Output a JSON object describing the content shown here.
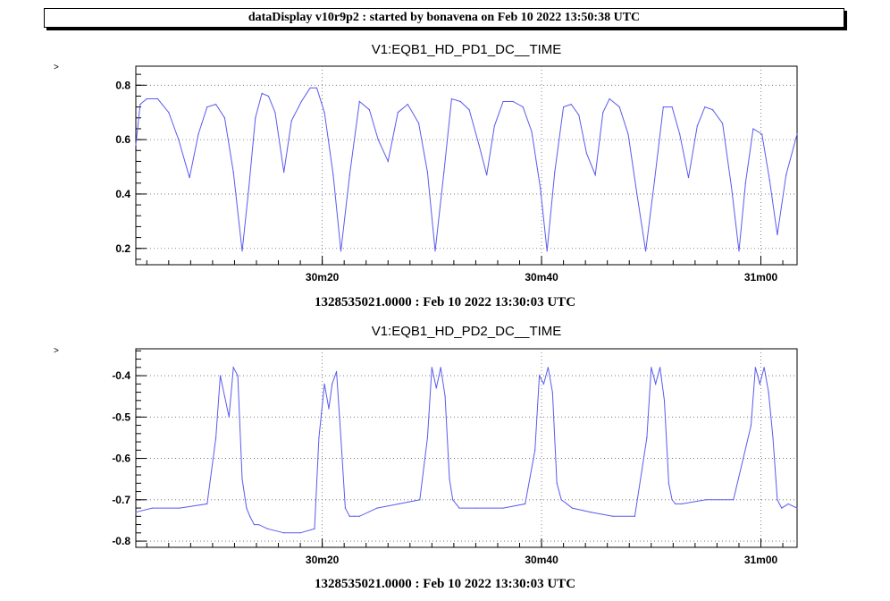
{
  "header": {
    "title": "dataDisplay v10r9p2 : started by bonavena on Feb 10 2022 13:50:38 UTC"
  },
  "chart_data": [
    {
      "type": "line",
      "title": "V1:EQB1_HD_PD1_DC__TIME",
      "y_marker": ">",
      "time_label": "1328535021.0000 : Feb 10 2022 13:30:03 UTC",
      "xlim": [
        1203.0,
        1263.3
      ],
      "ylim": [
        0.14,
        0.87
      ],
      "xticks": [
        {
          "value": 1220,
          "label": "30m20"
        },
        {
          "value": 1240,
          "label": "30m40"
        },
        {
          "value": 1260,
          "label": "31m00"
        }
      ],
      "yticks": [
        {
          "value": 0.2,
          "label": "0.2"
        },
        {
          "value": 0.4,
          "label": "0.4"
        },
        {
          "value": 0.6,
          "label": "0.6"
        },
        {
          "value": 0.8,
          "label": "0.8"
        }
      ],
      "grid": true,
      "color": "#5a5aef",
      "series": [
        {
          "x": [
            1203.0,
            1203.4,
            1204.0,
            1205.0,
            1206.0,
            1206.9,
            1207.9,
            1208.7,
            1209.5,
            1210.3,
            1211.1,
            1211.9,
            1212.7,
            1213.3,
            1213.9,
            1214.5,
            1215.1,
            1215.7,
            1216.5,
            1217.2,
            1218.1,
            1218.9,
            1219.5,
            1220.2,
            1221.0,
            1221.7,
            1222.5,
            1223.4,
            1224.3,
            1225.1,
            1226.0,
            1226.9,
            1227.8,
            1228.8,
            1229.6,
            1230.3,
            1231.1,
            1231.8,
            1232.6,
            1233.4,
            1234.3,
            1235.0,
            1235.7,
            1236.5,
            1237.4,
            1238.3,
            1239.1,
            1239.9,
            1240.5,
            1241.2,
            1242.0,
            1242.7,
            1243.4,
            1244.1,
            1244.9,
            1245.6,
            1246.2,
            1247.1,
            1247.9,
            1248.7,
            1249.5,
            1250.3,
            1251.1,
            1251.9,
            1252.6,
            1253.4,
            1254.2,
            1254.9,
            1255.6,
            1256.5,
            1257.3,
            1258.0,
            1258.6,
            1259.3,
            1260.1,
            1260.8,
            1261.5,
            1262.3,
            1263.3
          ],
          "y": [
            0.58,
            0.73,
            0.75,
            0.75,
            0.7,
            0.6,
            0.46,
            0.62,
            0.72,
            0.73,
            0.68,
            0.48,
            0.19,
            0.42,
            0.68,
            0.77,
            0.76,
            0.7,
            0.48,
            0.67,
            0.74,
            0.79,
            0.79,
            0.7,
            0.47,
            0.19,
            0.47,
            0.74,
            0.71,
            0.6,
            0.52,
            0.7,
            0.73,
            0.66,
            0.48,
            0.19,
            0.48,
            0.75,
            0.74,
            0.71,
            0.58,
            0.47,
            0.65,
            0.74,
            0.74,
            0.72,
            0.63,
            0.42,
            0.19,
            0.48,
            0.72,
            0.73,
            0.69,
            0.55,
            0.47,
            0.7,
            0.75,
            0.72,
            0.62,
            0.4,
            0.19,
            0.45,
            0.72,
            0.72,
            0.62,
            0.46,
            0.65,
            0.72,
            0.71,
            0.66,
            0.43,
            0.19,
            0.44,
            0.64,
            0.62,
            0.45,
            0.25,
            0.47,
            0.62
          ]
        }
      ]
    },
    {
      "type": "line",
      "title": "V1:EQB1_HD_PD2_DC__TIME",
      "y_marker": ">",
      "time_label": "1328535021.0000 : Feb 10 2022 13:30:03 UTC",
      "xlim": [
        1203.0,
        1263.3
      ],
      "ylim": [
        -0.815,
        -0.335
      ],
      "xticks": [
        {
          "value": 1220,
          "label": "30m20"
        },
        {
          "value": 1240,
          "label": "30m40"
        },
        {
          "value": 1260,
          "label": "31m00"
        }
      ],
      "yticks": [
        {
          "value": -0.8,
          "label": "-0.8"
        },
        {
          "value": -0.7,
          "label": "-0.7"
        },
        {
          "value": -0.6,
          "label": "-0.6"
        },
        {
          "value": -0.5,
          "label": "-0.5"
        },
        {
          "value": -0.4,
          "label": "-0.4"
        }
      ],
      "grid": true,
      "color": "#5a5aef",
      "series": [
        {
          "x": [
            1203.0,
            1204.5,
            1207.0,
            1209.5,
            1210.3,
            1210.7,
            1211.1,
            1211.5,
            1211.9,
            1212.3,
            1212.7,
            1213.1,
            1213.4,
            1213.8,
            1214.2,
            1215.0,
            1216.5,
            1218.0,
            1219.3,
            1219.7,
            1220.2,
            1220.6,
            1220.9,
            1221.3,
            1221.7,
            1222.1,
            1222.5,
            1222.9,
            1223.4,
            1225.0,
            1227.0,
            1228.9,
            1229.6,
            1230.0,
            1230.4,
            1230.8,
            1231.2,
            1231.6,
            1231.9,
            1232.5,
            1234.0,
            1236.5,
            1238.5,
            1239.4,
            1239.8,
            1240.2,
            1240.6,
            1241.0,
            1241.4,
            1241.8,
            1242.3,
            1242.8,
            1244.5,
            1246.5,
            1248.5,
            1249.6,
            1250.0,
            1250.4,
            1250.8,
            1251.2,
            1251.6,
            1251.9,
            1252.2,
            1252.8,
            1255.0,
            1257.5,
            1259.1,
            1259.5,
            1259.9,
            1260.3,
            1260.7,
            1261.1,
            1261.5,
            1261.9,
            1262.5,
            1263.3
          ],
          "y": [
            -0.73,
            -0.72,
            -0.72,
            -0.71,
            -0.55,
            -0.4,
            -0.45,
            -0.5,
            -0.38,
            -0.4,
            -0.65,
            -0.72,
            -0.74,
            -0.76,
            -0.76,
            -0.77,
            -0.78,
            -0.78,
            -0.77,
            -0.55,
            -0.42,
            -0.48,
            -0.42,
            -0.39,
            -0.55,
            -0.72,
            -0.74,
            -0.74,
            -0.74,
            -0.72,
            -0.71,
            -0.7,
            -0.55,
            -0.38,
            -0.43,
            -0.38,
            -0.45,
            -0.65,
            -0.7,
            -0.72,
            -0.72,
            -0.72,
            -0.71,
            -0.58,
            -0.4,
            -0.42,
            -0.38,
            -0.44,
            -0.66,
            -0.7,
            -0.71,
            -0.72,
            -0.73,
            -0.74,
            -0.74,
            -0.55,
            -0.38,
            -0.42,
            -0.38,
            -0.46,
            -0.66,
            -0.7,
            -0.71,
            -0.71,
            -0.7,
            -0.7,
            -0.52,
            -0.38,
            -0.42,
            -0.38,
            -0.44,
            -0.55,
            -0.7,
            -0.72,
            -0.71,
            -0.72
          ]
        }
      ]
    }
  ]
}
